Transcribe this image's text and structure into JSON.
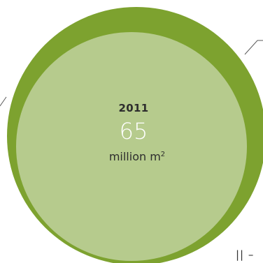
{
  "colors": {
    "outer_ring": "#7da22f",
    "inner_disc": "#b6cb8d",
    "leader_line": "#5a5a5a",
    "year_text": "#2d2d2d",
    "value_text": "#ffffff",
    "unit_text": "#2d2d2d"
  },
  "figure": {
    "year": "2011",
    "value": "65",
    "unit": "million m",
    "unit_superscript": "2",
    "corner_mark": "||  –"
  }
}
